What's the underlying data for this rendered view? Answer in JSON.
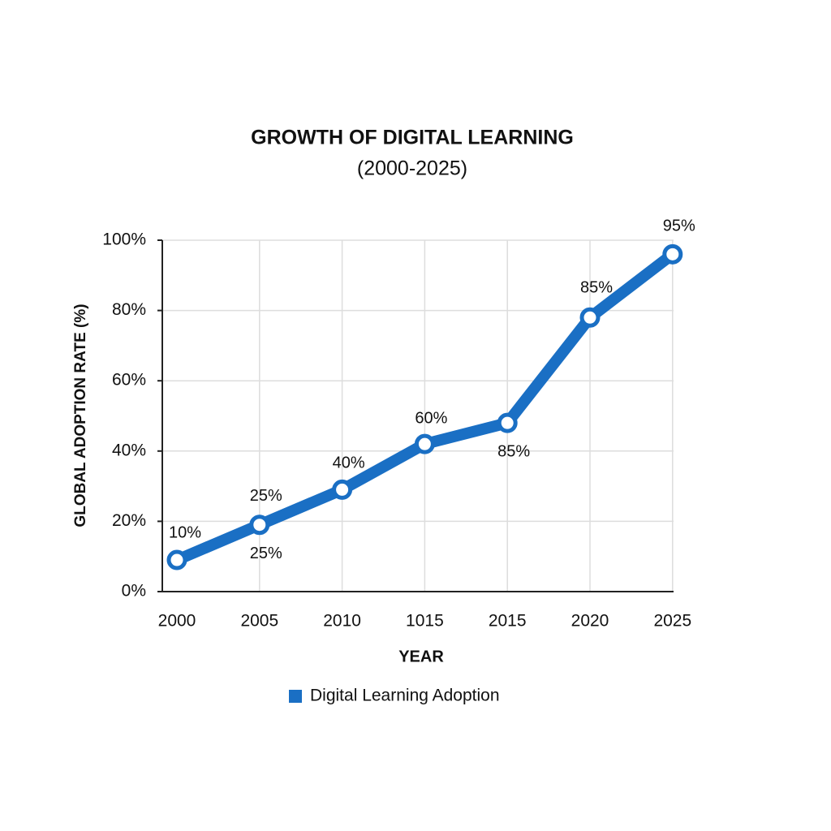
{
  "chart_data": {
    "type": "line",
    "title": "GROWTH OF DIGITAL LEARNING",
    "subtitle": "(2000-2025)",
    "x_label": "YEAR",
    "y_label": "GLOBAL ADOPTION RATE (%)",
    "categories": [
      "2000",
      "2005",
      "2010",
      "1015",
      "2015",
      "2020",
      "2025"
    ],
    "series": [
      {
        "name": "Digital Learning Adoption",
        "color": "#1a6fc4",
        "values": [
          9,
          19,
          29,
          42,
          48,
          78,
          96
        ]
      }
    ],
    "annotations": [
      "10%",
      "25%",
      "25%",
      "40%",
      "60%",
      "85%",
      "85%",
      "95%"
    ],
    "ylim": [
      0,
      100
    ],
    "yticks": [
      {
        "value": 0,
        "label": "0%"
      },
      {
        "value": 20,
        "label": "20%"
      },
      {
        "value": 40,
        "label": "40%"
      },
      {
        "value": 60,
        "label": "60%"
      },
      {
        "value": 80,
        "label": "80%"
      },
      {
        "value": 100,
        "label": "100%"
      }
    ],
    "grid": true,
    "legend": "bottom"
  }
}
